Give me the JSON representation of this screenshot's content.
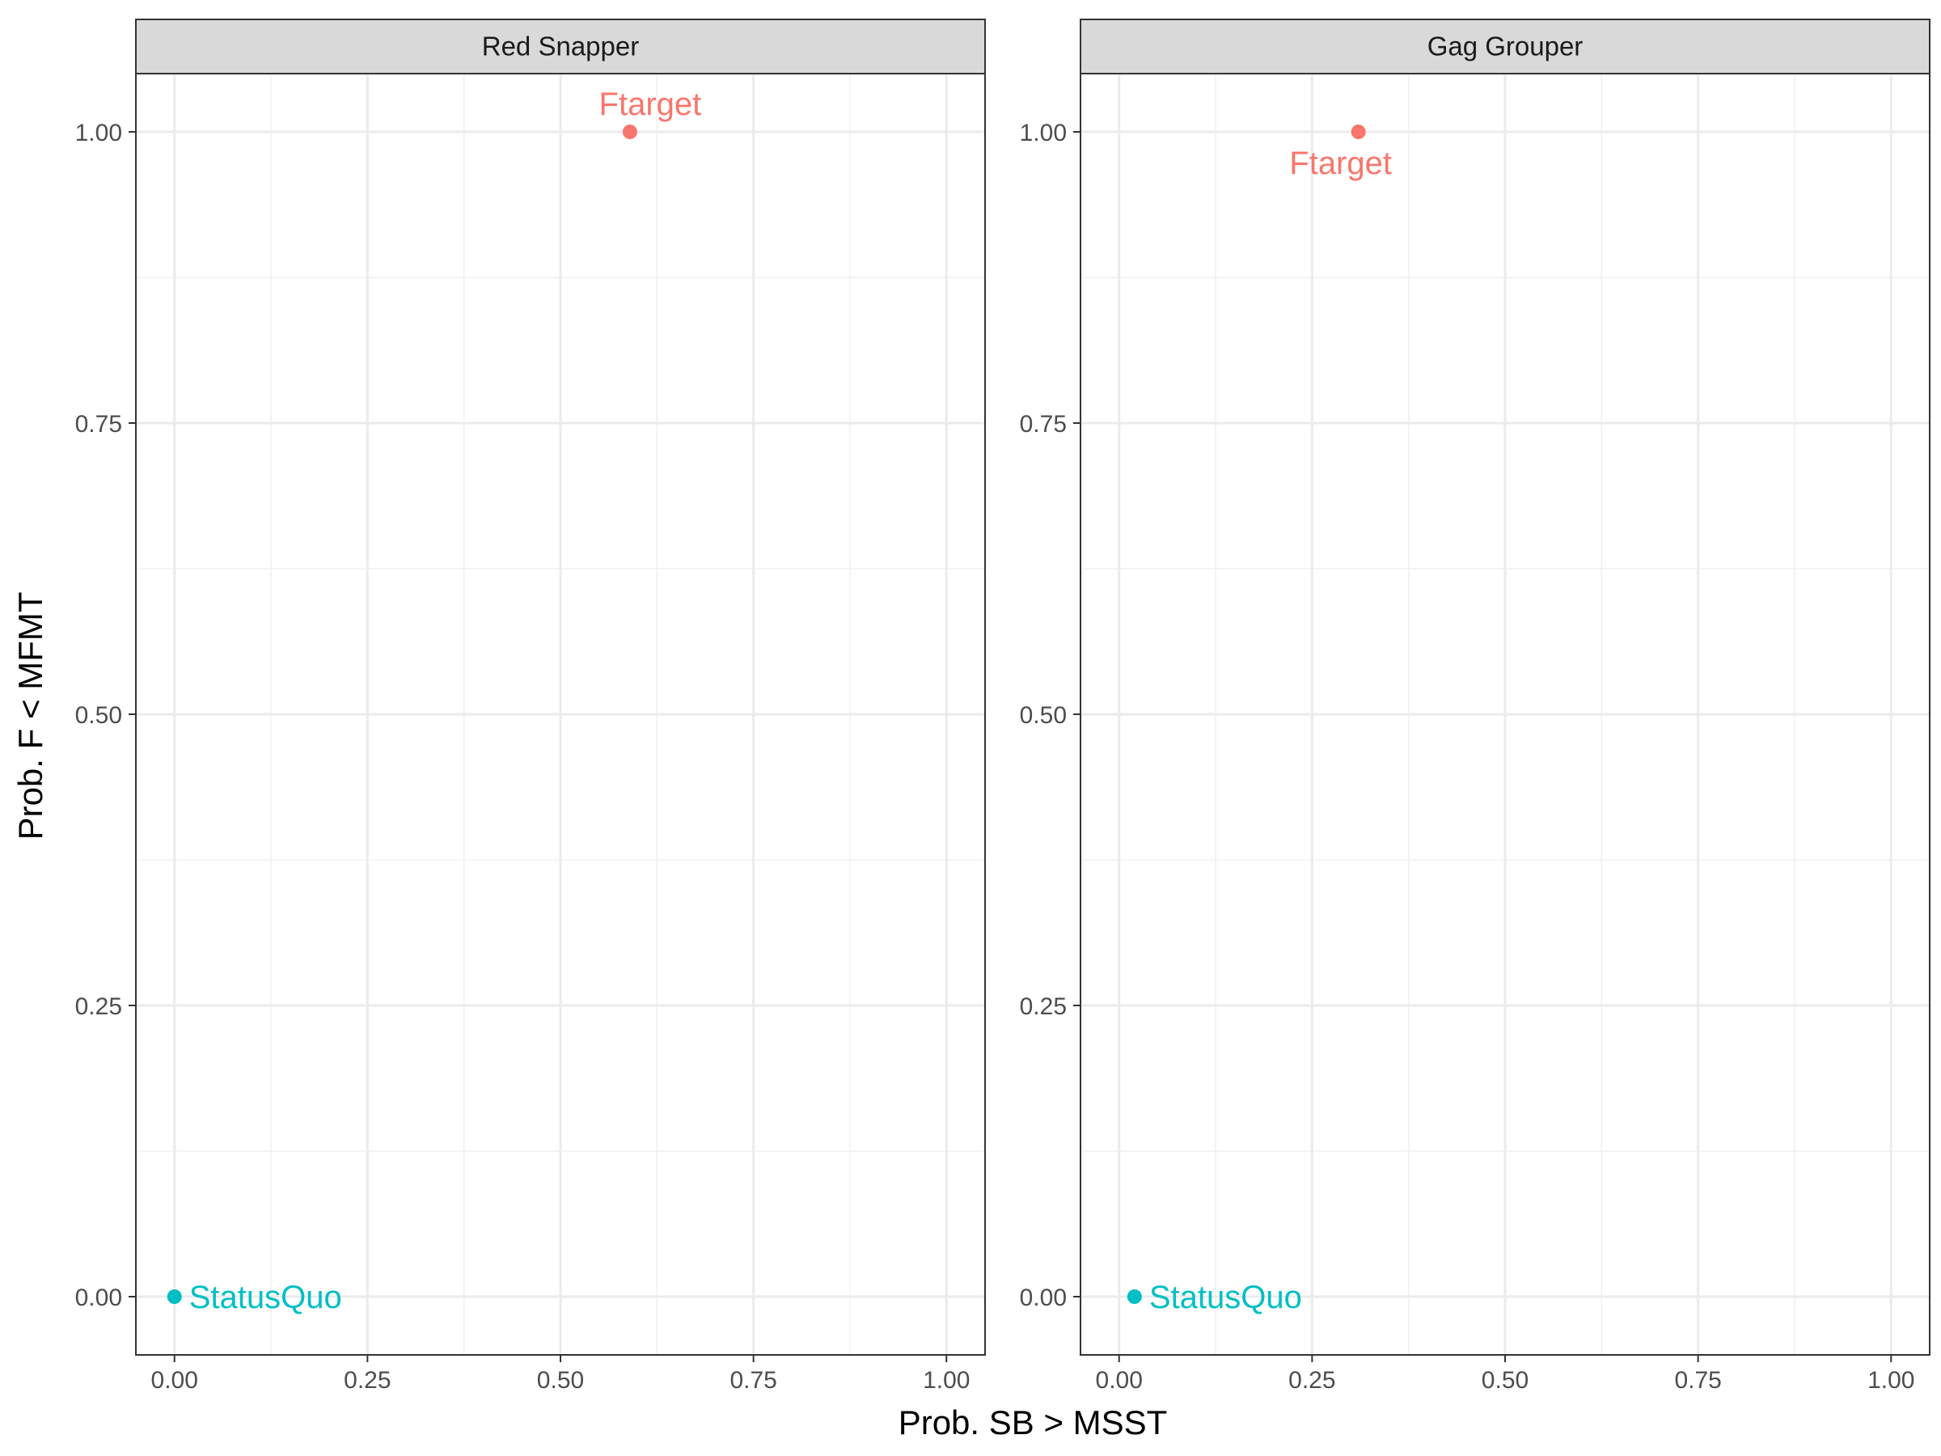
{
  "chart_data": {
    "type": "scatter",
    "xlabel": "Prob. SB > MSST",
    "ylabel": "Prob. F < MFMT",
    "xlim": [
      -0.05,
      1.05
    ],
    "ylim": [
      -0.05,
      1.05
    ],
    "x_ticks": [
      0,
      0.25,
      0.5,
      0.75,
      1
    ],
    "x_tick_labels": [
      "0.00",
      "0.25",
      "0.50",
      "0.75",
      "1.00"
    ],
    "y_ticks": [
      0,
      0.25,
      0.5,
      0.75,
      1
    ],
    "y_tick_labels": [
      "0.00",
      "0.25",
      "0.50",
      "0.75",
      "1.00"
    ],
    "grid": true,
    "facets": [
      {
        "title": "Red Snapper",
        "points": [
          {
            "label": "Ftarget",
            "x": 0.59,
            "y": 1.0,
            "color": "#F8766D",
            "label_position": "above"
          },
          {
            "label": "StatusQuo",
            "x": 0.0,
            "y": 0.0,
            "color": "#00BFC4",
            "label_position": "right"
          }
        ]
      },
      {
        "title": "Gag Grouper",
        "points": [
          {
            "label": "Ftarget",
            "x": 0.31,
            "y": 1.0,
            "color": "#F8766D",
            "label_position": "below"
          },
          {
            "label": "StatusQuo",
            "x": 0.02,
            "y": 0.0,
            "color": "#00BFC4",
            "label_position": "right"
          }
        ]
      }
    ]
  }
}
